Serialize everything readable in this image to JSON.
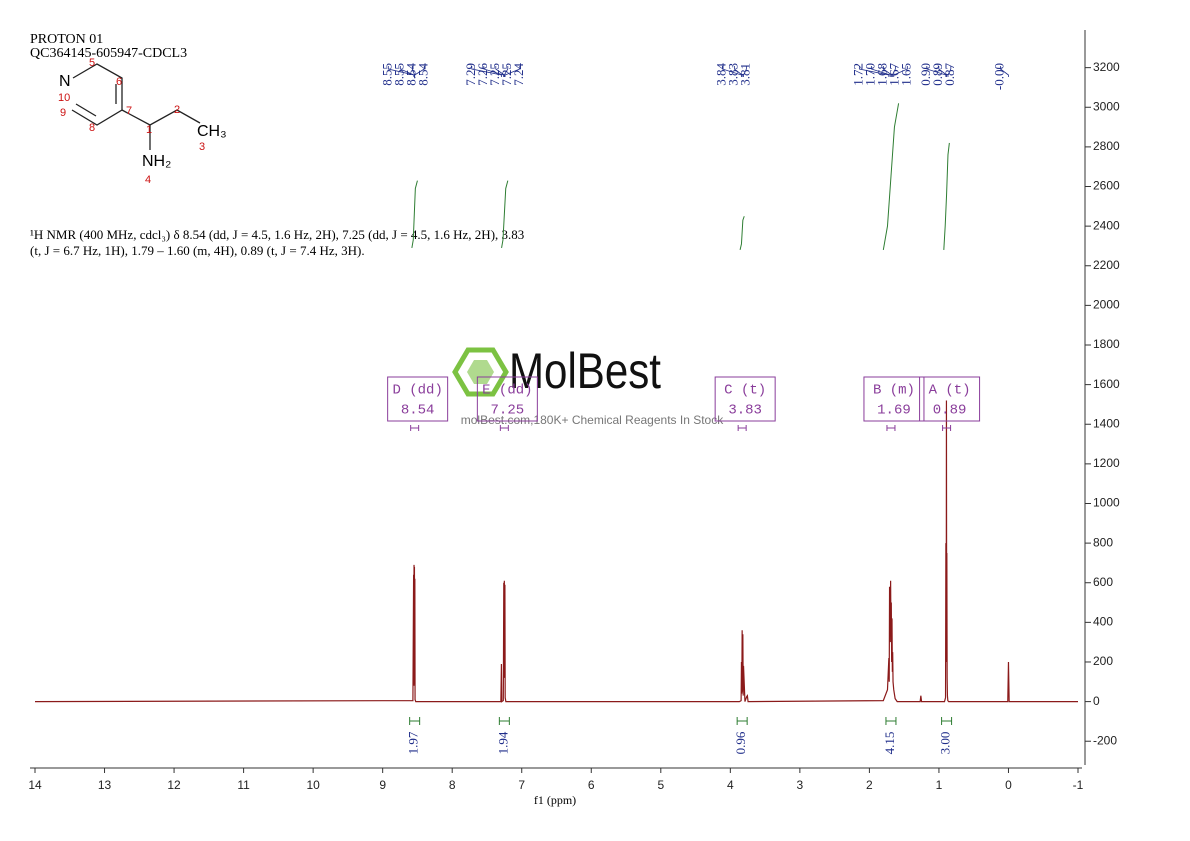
{
  "header": {
    "title": "PROTON 01",
    "sample": "QC364145-605947-CDCL3"
  },
  "structure": {
    "atoms": [
      "N",
      "5",
      "6",
      "10",
      "9",
      "8",
      "7",
      "1",
      "2",
      "CH₃",
      "3",
      "NH₂",
      "4"
    ]
  },
  "nmr_text": [
    "¹H NMR (400 MHz, cdcl₃) δ 8.54 (dd, J = 4.5, 1.6 Hz, 2H), 7.25 (dd, J = 4.5, 1.6 Hz, 2H), 3.83",
    "(t, J = 6.7 Hz, 1H), 1.79 – 1.60 (m, 4H), 0.89 (t, J = 7.4 Hz, 3H)."
  ],
  "watermark": {
    "brand": "MolBest",
    "tagline": "molBest.com,180K+ Chemical Reagents In Stock"
  },
  "chart_data": {
    "type": "nmr",
    "xlabel": "f1 (ppm)",
    "xlim": [
      14,
      -1
    ],
    "xticks": [
      14,
      13,
      12,
      11,
      10,
      9,
      8,
      7,
      6,
      5,
      4,
      3,
      2,
      1,
      0,
      -1
    ],
    "ylim": [
      -320,
      3390
    ],
    "yticks": [
      -200,
      0,
      200,
      400,
      600,
      800,
      1000,
      1200,
      1400,
      1600,
      1800,
      2000,
      2200,
      2400,
      2600,
      2800,
      3000,
      3200
    ],
    "color": "#8b1a1a",
    "x": [
      14,
      8.565,
      8.555,
      8.552,
      8.549,
      8.546,
      8.543,
      8.54,
      8.537,
      8.534,
      8.524,
      7.3,
      7.292,
      7.287,
      7.265,
      7.258,
      7.254,
      7.25,
      7.246,
      7.242,
      7.238,
      7.228,
      3.87,
      3.845,
      3.84,
      3.835,
      3.83,
      3.825,
      3.82,
      3.815,
      3.81,
      3.79,
      3.765,
      3.755,
      3.745,
      1.8,
      1.74,
      1.72,
      1.715,
      1.71,
      1.7,
      1.695,
      1.69,
      1.685,
      1.68,
      1.675,
      1.67,
      1.665,
      1.66,
      1.65,
      1.63,
      1.6,
      1.27,
      1.26,
      1.25,
      0.92,
      0.905,
      0.9,
      0.895,
      0.892,
      0.889,
      0.886,
      0.882,
      0.878,
      0.872,
      0.86,
      0.01,
      0,
      -0.01,
      -1
    ],
    "values": [
      0,
      5,
      640,
      80,
      690,
      120,
      680,
      90,
      620,
      10,
      0,
      0,
      190,
      0,
      5,
      600,
      120,
      610,
      130,
      590,
      20,
      0,
      0,
      5,
      200,
      40,
      360,
      50,
      340,
      30,
      180,
      0,
      25,
      30,
      0,
      5,
      60,
      220,
      100,
      580,
      300,
      610,
      350,
      500,
      200,
      420,
      150,
      250,
      100,
      60,
      15,
      0,
      0,
      30,
      0,
      0,
      20,
      800,
      200,
      1520,
      400,
      750,
      120,
      30,
      5,
      0,
      0,
      200,
      0,
      0
    ],
    "peak_label_color": "#1f2d8a",
    "peak_labels": [
      [
        8.55,
        8.55,
        8.54,
        8.54
      ],
      [
        7.29,
        7.26,
        7.25,
        7.25,
        7.24
      ],
      [
        3.84,
        3.83,
        3.81
      ],
      [
        1.72,
        {
          "value": 1.7,
          "label": "1.70"
        },
        1.68,
        1.67,
        1.65
      ],
      [
        {
          "value": 0.9,
          "label": "0.90"
        },
        0.89,
        0.87
      ],
      [
        {
          "value": 0,
          "label": "-0.00"
        }
      ]
    ],
    "multiplet_color": "#8a3d9b",
    "multiplets": [
      {
        "name": "D (dd)",
        "value": 8.54
      },
      {
        "name": "E (dd)",
        "value": 7.25
      },
      {
        "name": "C (t)",
        "value": 3.83
      },
      {
        "name": "B (m)",
        "value": 1.69
      },
      {
        "name": "A (t)",
        "value": 0.89
      }
    ],
    "integrals": {
      "values": [
        1.97,
        1.94,
        0.96,
        4.15,
        3
      ],
      "value_labels": [
        "1.97",
        "1.94",
        "0.96",
        "4.15",
        "3.00"
      ]
    },
    "integral_color": "#2e7d32",
    "integral_curves": [
      {
        "x": [
          8.58,
          8.56,
          8.545,
          8.53,
          8.5
        ],
        "y": [
          2290,
          2330,
          2460,
          2590,
          2630
        ]
      },
      {
        "x": [
          7.29,
          7.27,
          7.25,
          7.23,
          7.2
        ],
        "y": [
          2290,
          2330,
          2460,
          2590,
          2630
        ]
      },
      {
        "x": [
          3.86,
          3.84,
          3.83,
          3.82,
          3.8
        ],
        "y": [
          2280,
          2310,
          2370,
          2430,
          2450
        ]
      },
      {
        "x": [
          1.8,
          1.74,
          1.69,
          1.64,
          1.58
        ],
        "y": [
          2280,
          2400,
          2650,
          2900,
          3020
        ]
      },
      {
        "x": [
          0.93,
          0.91,
          0.89,
          0.87,
          0.85
        ],
        "y": [
          2280,
          2400,
          2560,
          2760,
          2820
        ]
      }
    ]
  }
}
